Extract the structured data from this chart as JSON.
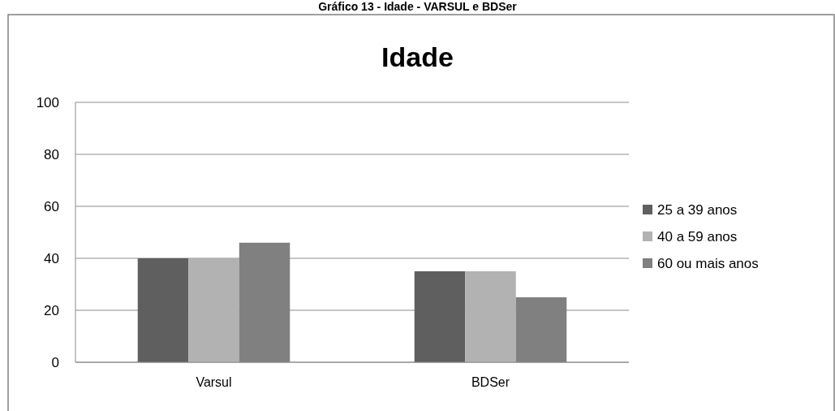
{
  "chart_data": {
    "type": "bar",
    "title": "Gráfico 13 - Idade - VARSUL e BDSer",
    "subtitle": "Idade",
    "categories": [
      "Varsul",
      "BDSer"
    ],
    "series": [
      {
        "name": "25 a 39 anos",
        "color": "#5f5f5f",
        "values": [
          40,
          35
        ]
      },
      {
        "name": "40 a 59 anos",
        "color": "#b2b2b2",
        "values": [
          40,
          35
        ]
      },
      {
        "name": "60 ou mais anos",
        "color": "#808080",
        "values": [
          46,
          25
        ]
      }
    ],
    "ylim": [
      0,
      100
    ],
    "yticks": [
      0,
      20,
      40,
      60,
      80,
      100
    ],
    "grid": "y",
    "legend": "right"
  }
}
